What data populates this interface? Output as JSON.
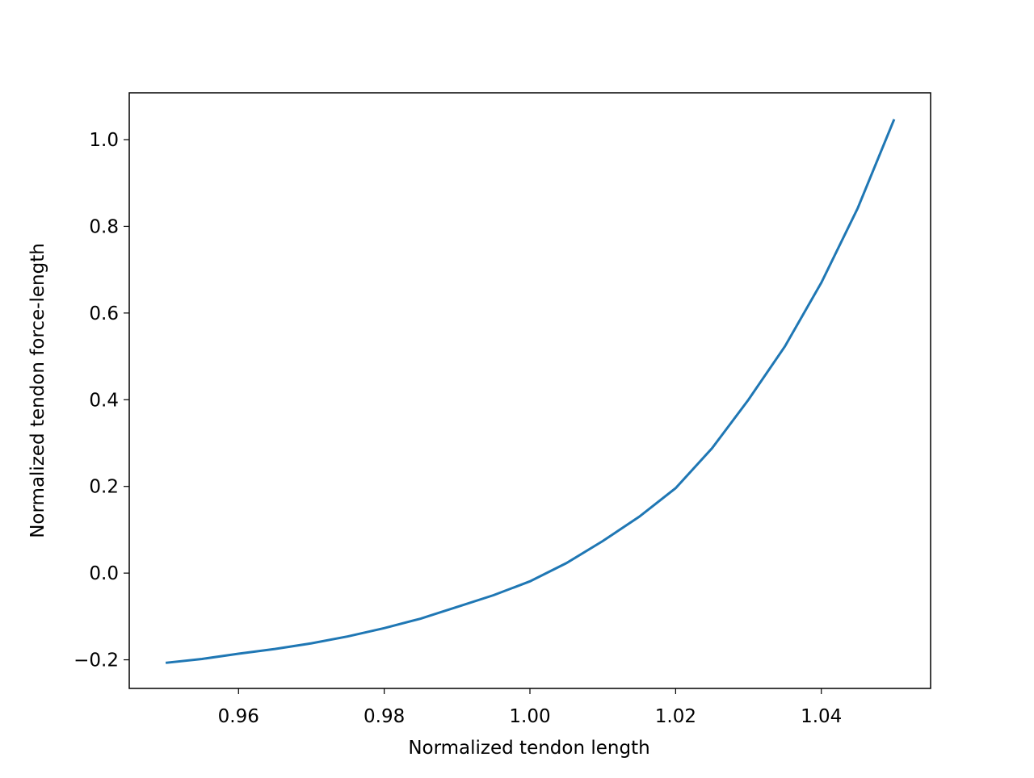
{
  "chart_data": {
    "type": "line",
    "xlabel": "Normalized tendon length",
    "ylabel": "Normalized tendon force-length",
    "x": [
      0.95,
      0.955,
      0.96,
      0.965,
      0.97,
      0.975,
      0.98,
      0.985,
      0.99,
      0.995,
      1.0,
      1.005,
      1.01,
      1.015,
      1.02,
      1.025,
      1.03,
      1.035,
      1.04,
      1.045,
      1.05
    ],
    "series": [
      {
        "color": "#1f77b4",
        "values": [
          -0.207,
          -0.198,
          -0.186,
          -0.175,
          -0.162,
          -0.146,
          -0.127,
          -0.105,
          -0.078,
          -0.051,
          -0.019,
          0.023,
          0.074,
          0.13,
          0.196,
          0.288,
          0.4,
          0.523,
          0.67,
          0.842,
          1.047
        ]
      }
    ],
    "xlim": [
      0.945,
      1.055
    ],
    "ylim": [
      -0.266,
      1.108
    ],
    "xticks": [
      0.96,
      0.98,
      {
        "value": 1.0,
        "label": "1.00"
      },
      1.02,
      1.04
    ],
    "yticks": [
      {
        "value": -0.2,
        "label": "−0.2"
      },
      {
        "value": 0.0,
        "label": "0.0"
      },
      0.2,
      0.4,
      0.6,
      0.8,
      {
        "value": 1.0,
        "label": "1.0"
      }
    ],
    "grid": false
  }
}
